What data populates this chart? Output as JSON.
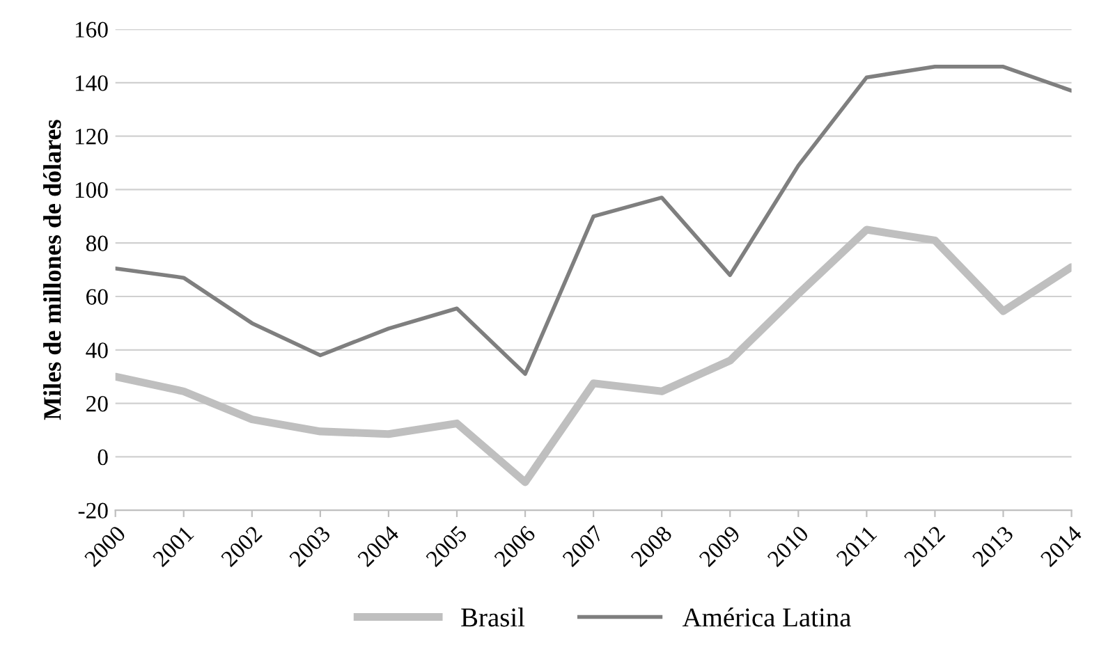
{
  "chart_data": {
    "type": "line",
    "ylabel": "Miles de millones de dólares",
    "categories": [
      "2000",
      "2001",
      "2002",
      "2003",
      "2004",
      "2005",
      "2006",
      "2007",
      "2008",
      "2009",
      "2010",
      "2011",
      "2012",
      "2013",
      "2014"
    ],
    "series": [
      {
        "name": "Brasil",
        "color": "#bfbfbf",
        "values": [
          30,
          24.5,
          14,
          9.5,
          8.5,
          12.5,
          -9.5,
          27.5,
          24.5,
          36,
          61,
          85,
          81,
          54.5,
          71
        ]
      },
      {
        "name": "América Latina",
        "color": "#7f7f7f",
        "values": [
          70.5,
          67,
          50,
          38,
          48,
          55.5,
          31,
          90,
          97,
          68,
          109,
          142,
          146,
          146,
          137
        ]
      }
    ],
    "ylim": [
      -20,
      160
    ],
    "yticks": [
      -20,
      0,
      20,
      40,
      60,
      80,
      100,
      120,
      140,
      160
    ],
    "grid": "y",
    "legend": "bottom",
    "marker": "none",
    "line_style": "solid"
  }
}
